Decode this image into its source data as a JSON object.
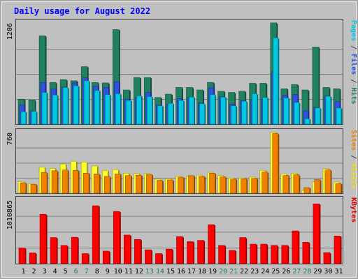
{
  "chart_data": {
    "type": "bar",
    "title": "Daily usage for August 2022",
    "categories": [
      "1",
      "2",
      "3",
      "4",
      "5",
      "6",
      "7",
      "8",
      "9",
      "10",
      "11",
      "12",
      "13",
      "14",
      "15",
      "16",
      "17",
      "18",
      "19",
      "20",
      "21",
      "22",
      "23",
      "24",
      "25",
      "26",
      "27",
      "28",
      "29",
      "30",
      "31"
    ],
    "weekend_days": [
      "6",
      "7",
      "13",
      "14",
      "20",
      "21",
      "27",
      "28"
    ],
    "panels": [
      {
        "id": "pages-files-hits",
        "tick_label": "1206",
        "ylim": [
          0,
          1206
        ],
        "axis_legend": [
          {
            "text": "Pages",
            "color": "#00c8e0"
          },
          {
            "text": " / ",
            "color": "#444444"
          },
          {
            "text": "Files",
            "color": "#3050e0"
          },
          {
            "text": " / ",
            "color": "#444444"
          },
          {
            "text": "Hits",
            "color": "#208060"
          }
        ],
        "series": [
          {
            "name": "Hits",
            "color": "#208060",
            "values": [
              300,
              290,
              1060,
              500,
              535,
              520,
              690,
              500,
              495,
              1135,
              410,
              560,
              560,
              320,
              360,
              440,
              440,
              410,
              500,
              395,
              380,
              395,
              490,
              490,
              1215,
              425,
              475,
              410,
              925,
              440,
              425
            ]
          },
          {
            "name": "Files",
            "color": "#3050e0",
            "values": [
              230,
              160,
              500,
              420,
              445,
              495,
              555,
              455,
              440,
              510,
              300,
              320,
              380,
              230,
              240,
              305,
              320,
              255,
              435,
              330,
              240,
              285,
              295,
              300,
              630,
              345,
              355,
              160,
              200,
              340,
              270
            ]
          },
          {
            "name": "Pages",
            "color": "#00c8e0",
            "values": [
              150,
              155,
              380,
              350,
              440,
              460,
              520,
              405,
              355,
              365,
              285,
              340,
              330,
              220,
              250,
              285,
              325,
              245,
              355,
              325,
              220,
              275,
              365,
              320,
              1035,
              315,
              260,
              65,
              195,
              335,
              195
            ]
          }
        ]
      },
      {
        "id": "sites-visits",
        "tick_label": "760",
        "ylim": [
          0,
          760
        ],
        "axis_legend": [
          {
            "text": "Sites",
            "color": "#f08000"
          },
          {
            "text": " / ",
            "color": "#444444"
          },
          {
            "text": "Visits",
            "color": "#f0e000"
          }
        ],
        "series": [
          {
            "name": "Visits",
            "color": "#ffff30",
            "values": [
              145,
              120,
              325,
              310,
              365,
              400,
              390,
              340,
              285,
              295,
              250,
              245,
              245,
              175,
              180,
              210,
              210,
              225,
              260,
              220,
              190,
              190,
              200,
              285,
              760,
              240,
              250,
              35,
              140,
              305,
              140
            ]
          },
          {
            "name": "Sites",
            "color": "#f08000",
            "values": [
              130,
              110,
              260,
              280,
              290,
              285,
              250,
              240,
              210,
              240,
              220,
              225,
              235,
              160,
              165,
              200,
              220,
              210,
              250,
              205,
              175,
              180,
              185,
              265,
              745,
              220,
              230,
              70,
              170,
              290,
              120
            ]
          }
        ]
      },
      {
        "id": "kbytes",
        "tick_label": "1010865",
        "ylim": [
          0,
          1010865
        ],
        "axis_legend": [
          {
            "text": "KBytes",
            "color": "#e00000"
          }
        ],
        "series": [
          {
            "name": "KBytes",
            "color": "#ff0000",
            "values": [
              250000,
              170000,
              785000,
              415000,
              290000,
              420000,
              160000,
              920000,
              200000,
              830000,
              455000,
              385000,
              220000,
              160000,
              230000,
              430000,
              350000,
              370000,
              620000,
              290000,
              210000,
              415000,
              310000,
              310000,
              290000,
              290000,
              520000,
              340000,
              950000,
              175000,
              440000
            ]
          }
        ]
      }
    ],
    "colors": {
      "background": "#c0c0c0",
      "title": "#0000ff",
      "weekday_label": "#000000",
      "weekend_label": "#208060",
      "gridline": "#808080"
    }
  }
}
